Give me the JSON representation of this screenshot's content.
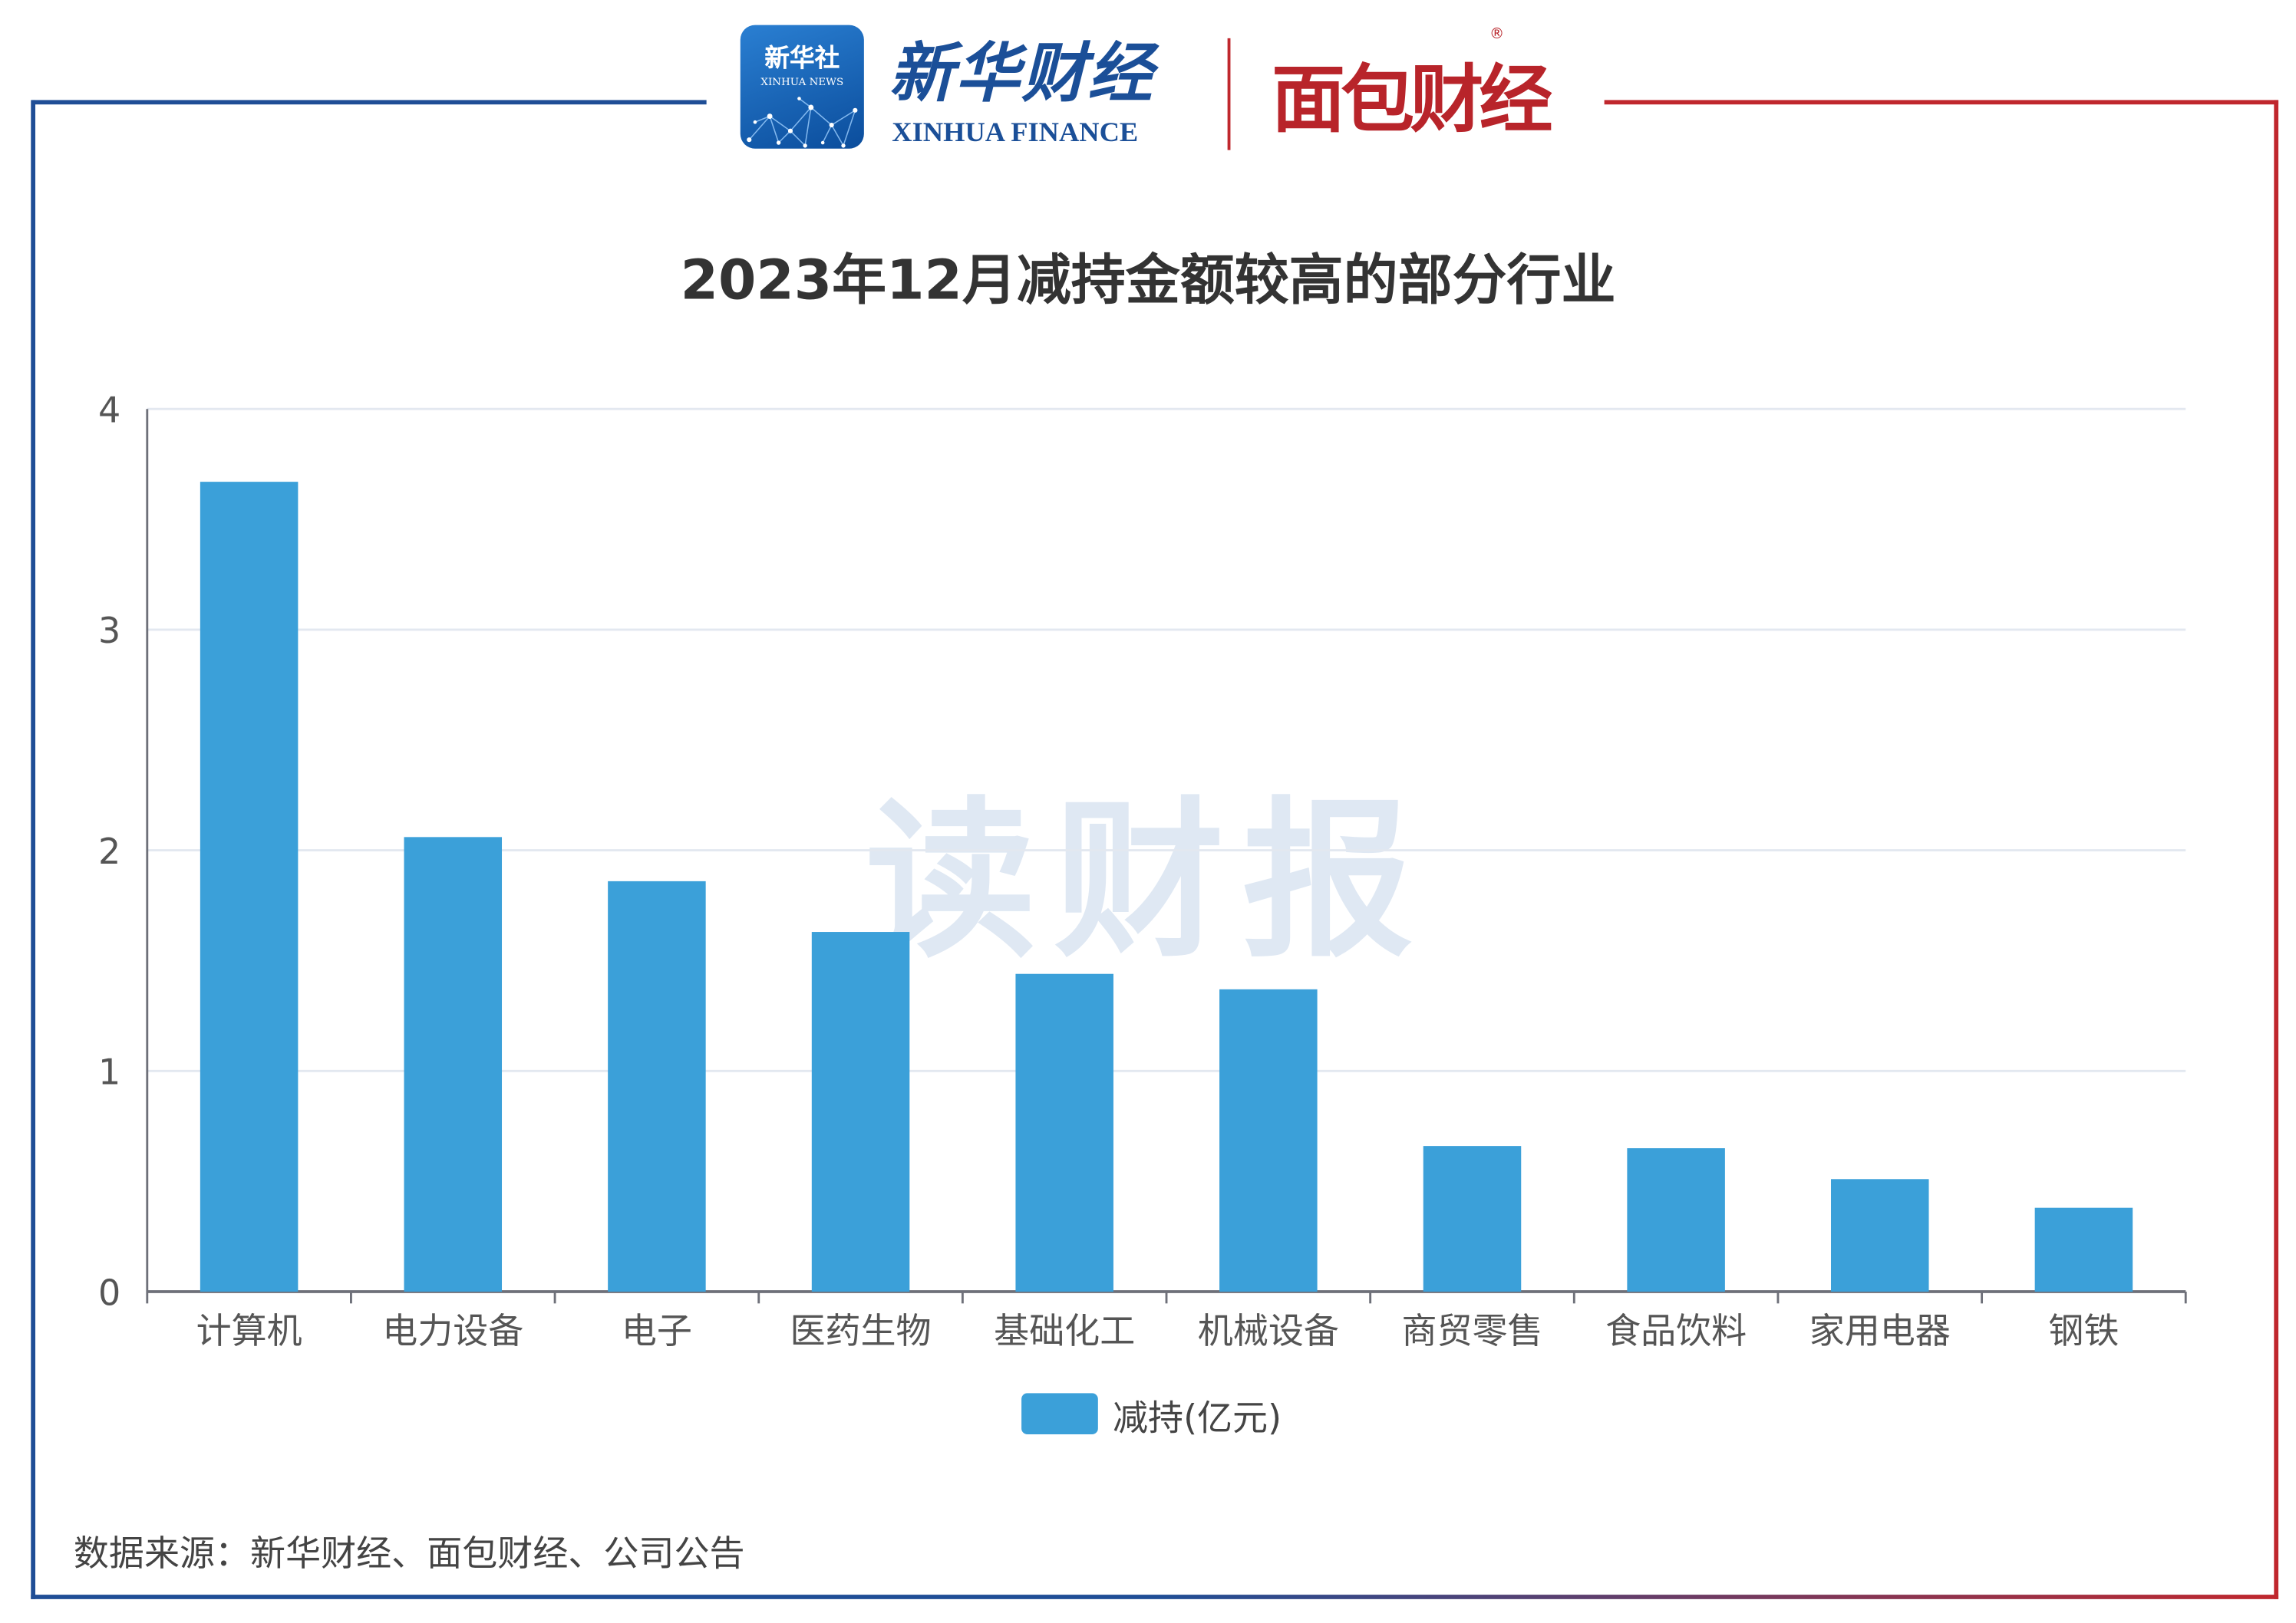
{
  "header": {
    "xinhua_badge_text": "新华社",
    "xinhua_badge_sub": "XINHUA NEWS",
    "xinhua_finance_cn": "新华财经",
    "xinhua_finance_en": "XINHUA FINANCE",
    "mianbao_logo": "面包财经",
    "registered_mark": "®"
  },
  "watermark": "读财报",
  "source_note": "数据来源：新华财经、面包财经、公司公告",
  "colors": {
    "bar": "#3ba0d9",
    "frame_left": "#1f4e96",
    "frame_right": "#c0272d",
    "grid": "#e3e8f0",
    "axis": "#6e7079",
    "tick_text": "#555555"
  },
  "chart_data": {
    "type": "bar",
    "title": "2023年12月减持金额较高的部分行业",
    "categories": [
      "计算机",
      "电力设备",
      "电子",
      "医药生物",
      "基础化工",
      "机械设备",
      "商贸零售",
      "食品饮料",
      "家用电器",
      "钢铁"
    ],
    "series": [
      {
        "name": "减持(亿元)",
        "values": [
          3.67,
          2.06,
          1.86,
          1.63,
          1.44,
          1.37,
          0.66,
          0.65,
          0.51,
          0.38
        ]
      }
    ],
    "ylim": [
      0,
      4
    ],
    "yticks": [
      "0",
      "1",
      "2",
      "3",
      "4"
    ],
    "grid": true,
    "legend_position": "bottom-center"
  }
}
